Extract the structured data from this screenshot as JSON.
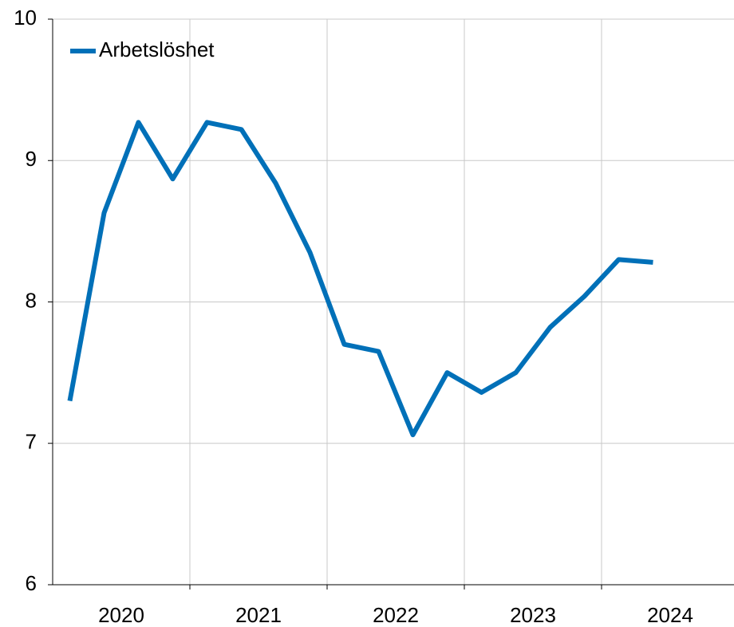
{
  "chart_data": {
    "type": "line",
    "categories": [
      null,
      null,
      null,
      null,
      null,
      null,
      null,
      null,
      null,
      null,
      null,
      null,
      null,
      null,
      null,
      null,
      null,
      null
    ],
    "xtick_labels": [
      "2020",
      "2021",
      "2022",
      "2023",
      "2024"
    ],
    "series": [
      {
        "name": "Arbetslöshet",
        "color": "#0070b8",
        "values": [
          7.3,
          8.63,
          9.27,
          8.87,
          9.27,
          9.22,
          8.84,
          8.35,
          7.7,
          7.65,
          7.06,
          7.5,
          7.36,
          7.5,
          7.82,
          8.04,
          8.3,
          8.28
        ]
      }
    ],
    "ylim": [
      6,
      10
    ],
    "yticks": [
      6,
      7,
      8,
      9,
      10
    ],
    "grid": true,
    "legend": "top-left"
  }
}
